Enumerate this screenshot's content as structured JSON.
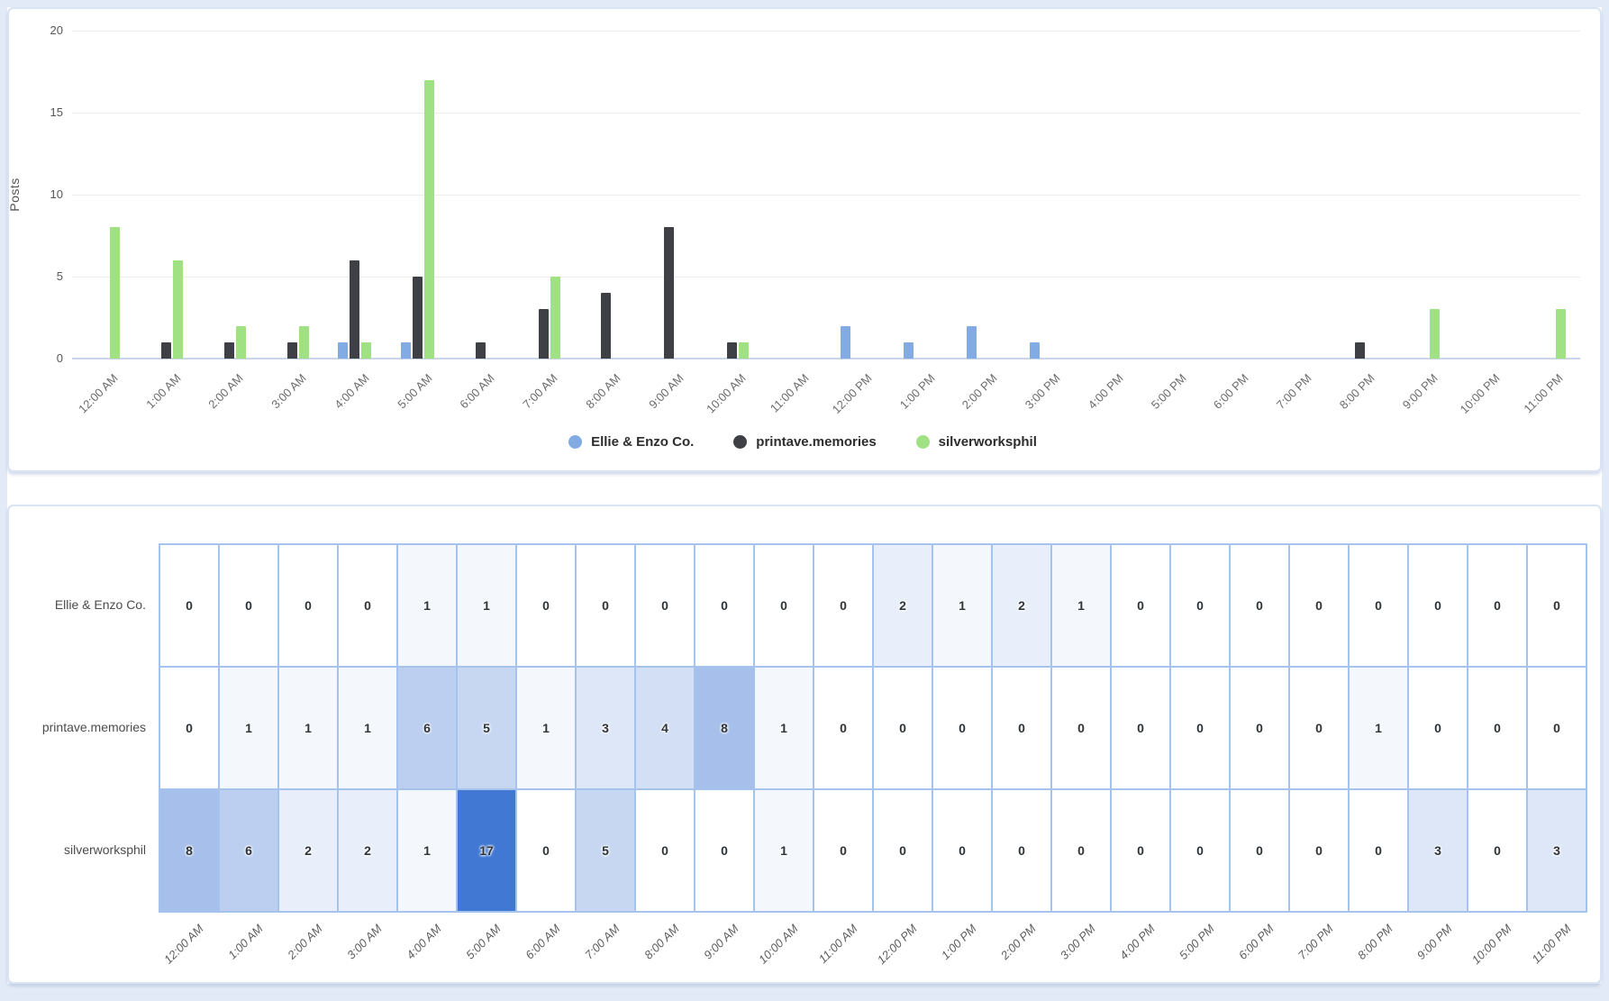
{
  "y_axis_title": "Posts",
  "hours": [
    "12:00 AM",
    "1:00 AM",
    "2:00 AM",
    "3:00 AM",
    "4:00 AM",
    "5:00 AM",
    "6:00 AM",
    "7:00 AM",
    "8:00 AM",
    "9:00 AM",
    "10:00 AM",
    "11:00 AM",
    "12:00 PM",
    "1:00 PM",
    "2:00 PM",
    "3:00 PM",
    "4:00 PM",
    "5:00 PM",
    "6:00 PM",
    "7:00 PM",
    "8:00 PM",
    "9:00 PM",
    "10:00 PM",
    "11:00 PM"
  ],
  "chart_data": [
    {
      "type": "bar",
      "title": "",
      "xlabel": "",
      "ylabel": "Posts",
      "ylim": [
        0,
        20
      ],
      "yticks": [
        0,
        5,
        10,
        15,
        20
      ],
      "grid": true,
      "legend_position": "bottom",
      "categories": [
        "12:00 AM",
        "1:00 AM",
        "2:00 AM",
        "3:00 AM",
        "4:00 AM",
        "5:00 AM",
        "6:00 AM",
        "7:00 AM",
        "8:00 AM",
        "9:00 AM",
        "10:00 AM",
        "11:00 AM",
        "12:00 PM",
        "1:00 PM",
        "2:00 PM",
        "3:00 PM",
        "4:00 PM",
        "5:00 PM",
        "6:00 PM",
        "7:00 PM",
        "8:00 PM",
        "9:00 PM",
        "10:00 PM",
        "11:00 PM"
      ],
      "series": [
        {
          "name": "Ellie & Enzo Co.",
          "color": "#82abe4",
          "values": [
            0,
            0,
            0,
            0,
            1,
            1,
            0,
            0,
            0,
            0,
            0,
            0,
            2,
            1,
            2,
            1,
            0,
            0,
            0,
            0,
            0,
            0,
            0,
            0
          ]
        },
        {
          "name": "printave.memories",
          "color": "#3f4046",
          "values": [
            0,
            1,
            1,
            1,
            6,
            5,
            1,
            3,
            4,
            8,
            1,
            0,
            0,
            0,
            0,
            0,
            0,
            0,
            0,
            0,
            1,
            0,
            0,
            0
          ]
        },
        {
          "name": "silverworksphil",
          "color": "#a0e184",
          "values": [
            8,
            6,
            2,
            2,
            1,
            17,
            0,
            5,
            0,
            0,
            1,
            0,
            0,
            0,
            0,
            0,
            0,
            0,
            0,
            0,
            0,
            3,
            0,
            3
          ]
        }
      ]
    },
    {
      "type": "heatmap",
      "categories": [
        "12:00 AM",
        "1:00 AM",
        "2:00 AM",
        "3:00 AM",
        "4:00 AM",
        "5:00 AM",
        "6:00 AM",
        "7:00 AM",
        "8:00 AM",
        "9:00 AM",
        "10:00 AM",
        "11:00 AM",
        "12:00 PM",
        "1:00 PM",
        "2:00 PM",
        "3:00 PM",
        "4:00 PM",
        "5:00 PM",
        "6:00 PM",
        "7:00 PM",
        "8:00 PM",
        "9:00 PM",
        "10:00 PM",
        "11:00 PM"
      ],
      "rows": [
        {
          "name": "Ellie & Enzo Co.",
          "values": [
            0,
            0,
            0,
            0,
            1,
            1,
            0,
            0,
            0,
            0,
            0,
            0,
            2,
            1,
            2,
            1,
            0,
            0,
            0,
            0,
            0,
            0,
            0,
            0
          ]
        },
        {
          "name": "printave.memories",
          "values": [
            0,
            1,
            1,
            1,
            6,
            5,
            1,
            3,
            4,
            8,
            1,
            0,
            0,
            0,
            0,
            0,
            0,
            0,
            0,
            0,
            1,
            0,
            0,
            0
          ]
        },
        {
          "name": "silverworksphil",
          "values": [
            8,
            6,
            2,
            2,
            1,
            17,
            0,
            5,
            0,
            0,
            1,
            0,
            0,
            0,
            0,
            0,
            0,
            0,
            0,
            0,
            0,
            3,
            0,
            3
          ]
        }
      ],
      "min_value": 0,
      "max_value": 17,
      "min_color": "#ffffff",
      "max_color": "#4178d4",
      "grid_border_color": "#a5c3ec"
    }
  ]
}
